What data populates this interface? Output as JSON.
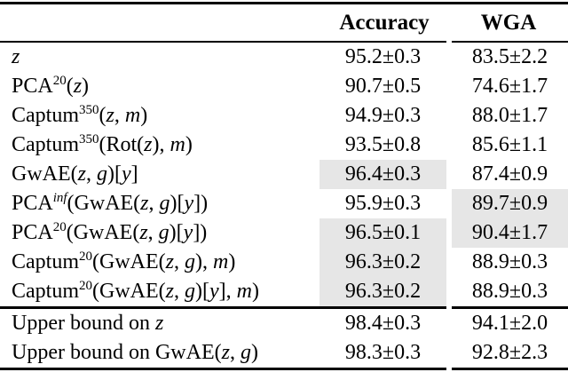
{
  "table": {
    "columns": [
      "",
      "Accuracy",
      "WGA"
    ],
    "highlight_color": "#e6e6e6",
    "sections": [
      {
        "name": "main-results",
        "rows": [
          {
            "label": [
              {
                "t": "z",
                "s": "i"
              }
            ],
            "accuracy": "95.2±0.3",
            "wga": "83.5±2.2",
            "acc_hl": false,
            "wga_hl": false
          },
          {
            "label": [
              {
                "t": "PCA",
                "s": ""
              },
              {
                "t": "20",
                "s": "sup"
              },
              {
                "t": "(",
                "s": ""
              },
              {
                "t": "z",
                "s": "i"
              },
              {
                "t": ")",
                "s": ""
              }
            ],
            "accuracy": "90.7±0.5",
            "wga": "74.6±1.7",
            "acc_hl": false,
            "wga_hl": false
          },
          {
            "label": [
              {
                "t": "Captum",
                "s": ""
              },
              {
                "t": "350",
                "s": "sup"
              },
              {
                "t": "(",
                "s": ""
              },
              {
                "t": "z",
                "s": "i"
              },
              {
                "t": ", ",
                "s": ""
              },
              {
                "t": "m",
                "s": "i"
              },
              {
                "t": ")",
                "s": ""
              }
            ],
            "accuracy": "94.9±0.3",
            "wga": "88.0±1.7",
            "acc_hl": false,
            "wga_hl": false
          },
          {
            "label": [
              {
                "t": "Captum",
                "s": ""
              },
              {
                "t": "350",
                "s": "sup"
              },
              {
                "t": "(Rot(",
                "s": ""
              },
              {
                "t": "z",
                "s": "i"
              },
              {
                "t": "), ",
                "s": ""
              },
              {
                "t": "m",
                "s": "i"
              },
              {
                "t": ")",
                "s": ""
              }
            ],
            "accuracy": "93.5±0.8",
            "wga": "85.6±1.1",
            "acc_hl": false,
            "wga_hl": false
          },
          {
            "label": [
              {
                "t": "GwAE(",
                "s": ""
              },
              {
                "t": "z",
                "s": "i"
              },
              {
                "t": ", ",
                "s": ""
              },
              {
                "t": "g",
                "s": "i"
              },
              {
                "t": ")[",
                "s": ""
              },
              {
                "t": "y",
                "s": "i"
              },
              {
                "t": "]",
                "s": ""
              }
            ],
            "accuracy": "96.4±0.3",
            "wga": "87.4±0.9",
            "acc_hl": true,
            "wga_hl": false
          },
          {
            "label": [
              {
                "t": "PCA",
                "s": ""
              },
              {
                "t": "inf",
                "s": "supi"
              },
              {
                "t": "(GwAE(",
                "s": ""
              },
              {
                "t": "z",
                "s": "i"
              },
              {
                "t": ", ",
                "s": ""
              },
              {
                "t": "g",
                "s": "i"
              },
              {
                "t": ")[",
                "s": ""
              },
              {
                "t": "y",
                "s": "i"
              },
              {
                "t": "])",
                "s": ""
              }
            ],
            "accuracy": "95.9±0.3",
            "wga": "89.7±0.9",
            "acc_hl": false,
            "wga_hl": true
          },
          {
            "label": [
              {
                "t": "PCA",
                "s": ""
              },
              {
                "t": "20",
                "s": "sup"
              },
              {
                "t": "(GwAE(",
                "s": ""
              },
              {
                "t": "z",
                "s": "i"
              },
              {
                "t": ", ",
                "s": ""
              },
              {
                "t": "g",
                "s": "i"
              },
              {
                "t": ")[",
                "s": ""
              },
              {
                "t": "y",
                "s": "i"
              },
              {
                "t": "])",
                "s": ""
              }
            ],
            "accuracy": "96.5±0.1",
            "wga": "90.4±1.7",
            "acc_hl": true,
            "wga_hl": true
          },
          {
            "label": [
              {
                "t": "Captum",
                "s": ""
              },
              {
                "t": "20",
                "s": "sup"
              },
              {
                "t": "(GwAE(",
                "s": ""
              },
              {
                "t": "z",
                "s": "i"
              },
              {
                "t": ", ",
                "s": ""
              },
              {
                "t": "g",
                "s": "i"
              },
              {
                "t": "), ",
                "s": ""
              },
              {
                "t": "m",
                "s": "i"
              },
              {
                "t": ")",
                "s": ""
              }
            ],
            "accuracy": "96.3±0.2",
            "wga": "88.9±0.3",
            "acc_hl": true,
            "wga_hl": false
          },
          {
            "label": [
              {
                "t": "Captum",
                "s": ""
              },
              {
                "t": "20",
                "s": "sup"
              },
              {
                "t": "(GwAE(",
                "s": ""
              },
              {
                "t": "z",
                "s": "i"
              },
              {
                "t": ", ",
                "s": ""
              },
              {
                "t": "g",
                "s": "i"
              },
              {
                "t": ")[",
                "s": ""
              },
              {
                "t": "y",
                "s": "i"
              },
              {
                "t": "], ",
                "s": ""
              },
              {
                "t": "m",
                "s": "i"
              },
              {
                "t": ")",
                "s": ""
              }
            ],
            "accuracy": "96.3±0.2",
            "wga": "88.9±0.3",
            "acc_hl": true,
            "wga_hl": false
          }
        ]
      },
      {
        "name": "upper-bounds",
        "rows": [
          {
            "label": [
              {
                "t": "Upper bound on ",
                "s": ""
              },
              {
                "t": "z",
                "s": "i"
              }
            ],
            "accuracy": "98.4±0.3",
            "wga": "94.1±2.0",
            "acc_hl": false,
            "wga_hl": false
          },
          {
            "label": [
              {
                "t": "Upper bound on GwAE(",
                "s": ""
              },
              {
                "t": "z",
                "s": "i"
              },
              {
                "t": ", ",
                "s": ""
              },
              {
                "t": "g",
                "s": "i"
              },
              {
                "t": ")",
                "s": ""
              }
            ],
            "accuracy": "98.3±0.3",
            "wga": "92.8±2.3",
            "acc_hl": false,
            "wga_hl": false
          }
        ]
      }
    ]
  }
}
